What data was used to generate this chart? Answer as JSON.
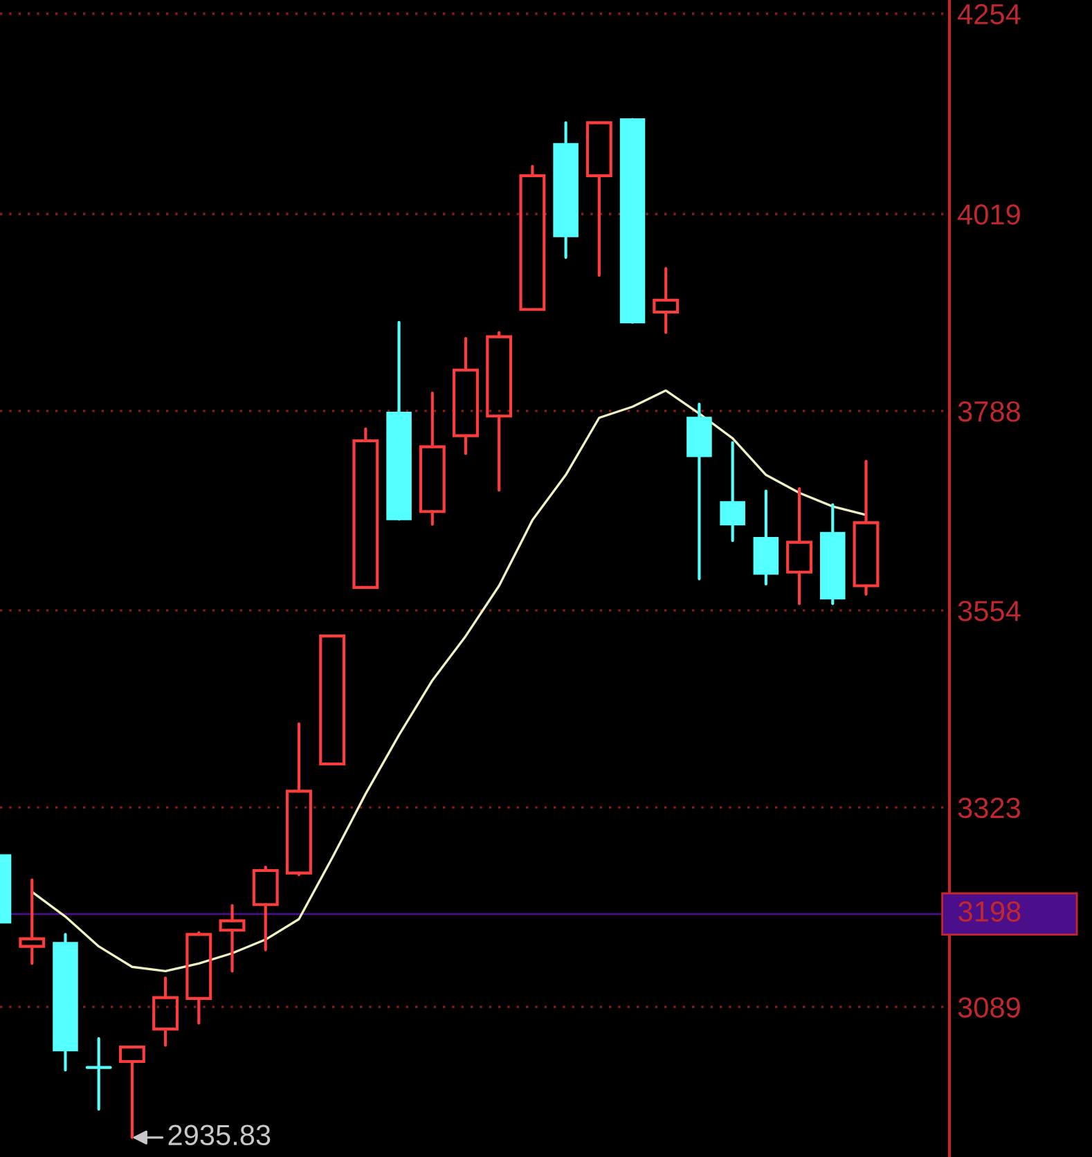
{
  "chart_data": {
    "type": "candlestick",
    "categories": [
      null,
      null,
      null,
      null,
      null,
      null,
      null,
      null,
      null,
      null,
      null,
      null,
      null,
      null,
      null,
      null,
      null,
      null,
      null,
      null,
      null,
      null,
      null,
      null,
      null,
      null,
      null
    ],
    "ohlc": [
      [
        3267,
        3267,
        3188,
        3188
      ],
      [
        3160,
        3238,
        3140,
        3169
      ],
      [
        3164,
        3174,
        3015,
        3038
      ],
      [
        3018,
        3052,
        2969,
        3018
      ],
      [
        3025,
        3042,
        2935.83,
        3042
      ],
      [
        3063,
        3123,
        3044,
        3100
      ],
      [
        3099,
        3176,
        3070,
        3174
      ],
      [
        3179,
        3208,
        3131,
        3190
      ],
      [
        3209,
        3253,
        3156,
        3249
      ],
      [
        3246,
        3421,
        3244,
        3342
      ],
      [
        3374,
        3524,
        3374,
        3524
      ],
      [
        3581,
        3767,
        3581,
        3753
      ],
      [
        3786,
        3892,
        3661,
        3661
      ],
      [
        3670,
        3809,
        3655,
        3746
      ],
      [
        3759,
        3873,
        3738,
        3836
      ],
      [
        3782,
        3880,
        3695,
        3875
      ],
      [
        3907,
        4075,
        3907,
        4064
      ],
      [
        4101,
        4126,
        3968,
        3993
      ],
      [
        4064,
        4126,
        3947,
        4126
      ],
      [
        4130,
        4130,
        3892,
        3892
      ],
      [
        3904,
        3955,
        3880,
        3918
      ],
      [
        3780,
        3796,
        3591,
        3735
      ],
      [
        3681,
        3751,
        3636,
        3655
      ],
      [
        3639,
        3694,
        3585,
        3597
      ],
      [
        3599,
        3697,
        3562,
        3634
      ],
      [
        3645,
        3678,
        3562,
        3568
      ],
      [
        3583,
        3729,
        3573,
        3657
      ]
    ],
    "colors": [
      "#54ffff",
      "#ff3c3c",
      "#54ffff",
      "#54ffff",
      "#ff3c3c",
      "#ff3c3c",
      "#ff3c3c",
      "#ff3c3c",
      "#ff3c3c",
      "#ff3c3c",
      "#ff3c3c",
      "#ff3c3c",
      "#54ffff",
      "#ff3c3c",
      "#ff3c3c",
      "#ff3c3c",
      "#ff3c3c",
      "#54ffff",
      "#ff3c3c",
      "#54ffff",
      "#ff3c3c",
      "#54ffff",
      "#54ffff",
      "#54ffff",
      "#ff3c3c",
      "#54ffff",
      "#ff3c3c"
    ],
    "series": [
      {
        "type": "line",
        "color": "#f0f0c0",
        "values": [
          null,
          3224,
          3195,
          3160,
          3136,
          3131,
          3140,
          3152,
          3168,
          3192,
          3264,
          3339,
          3408,
          3472,
          3524,
          3583,
          3660,
          3713,
          3780,
          3793,
          3812,
          3785,
          3756,
          3713,
          3692,
          3676,
          3666
        ]
      }
    ],
    "ylim": [
      2913,
      4270
    ],
    "yticks": [
      3089,
      3323,
      3554,
      3788,
      4019,
      4254
    ],
    "grid": "y",
    "ref_lines": [
      {
        "axis": "y",
        "value": 3198,
        "label": "3198",
        "color": "#4b0f8c"
      }
    ],
    "annotations": [
      "2935.83"
    ]
  }
}
